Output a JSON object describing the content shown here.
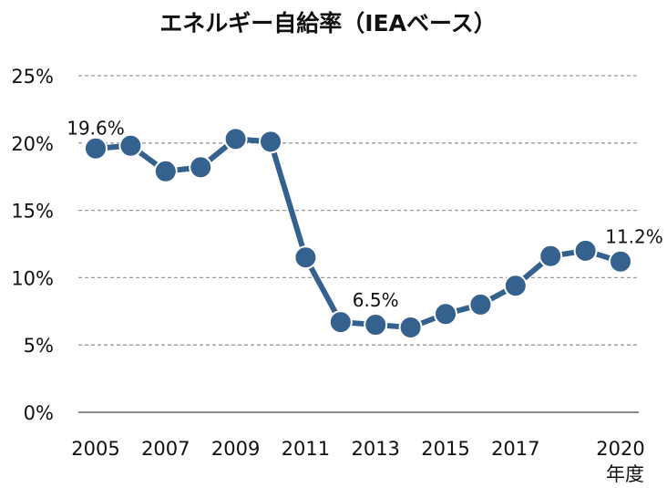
{
  "chart_data": {
    "type": "line",
    "title": "エネルギー自給率（IEAベース）",
    "xlabel": "年度",
    "ylabel": "",
    "x": [
      2005,
      2006,
      2007,
      2008,
      2009,
      2010,
      2011,
      2012,
      2013,
      2014,
      2015,
      2016,
      2017,
      2018,
      2019,
      2020
    ],
    "series": [
      {
        "name": "エネルギー自給率",
        "color": "#35618F",
        "values": [
          19.6,
          19.8,
          17.9,
          18.2,
          20.3,
          20.1,
          11.5,
          6.7,
          6.5,
          6.3,
          7.3,
          8.0,
          9.4,
          11.6,
          12.0,
          11.2
        ]
      }
    ],
    "ylim": [
      0,
      25
    ],
    "yticks": [
      0,
      5,
      10,
      15,
      20,
      25
    ],
    "ytick_labels": [
      "0%",
      "5%",
      "10%",
      "15%",
      "20%",
      "25%"
    ],
    "xtick_labels": [
      {
        "x": 2005,
        "label": "2005"
      },
      {
        "x": 2007,
        "label": "2007"
      },
      {
        "x": 2009,
        "label": "2009"
      },
      {
        "x": 2011,
        "label": "2011"
      },
      {
        "x": 2013,
        "label": "2013"
      },
      {
        "x": 2015,
        "label": "2015"
      },
      {
        "x": 2017,
        "label": "2017"
      },
      {
        "x": 2020,
        "label": "2020"
      }
    ],
    "annotations": [
      {
        "x": 2005,
        "label": "19.6%"
      },
      {
        "x": 2013,
        "label": "6.5%"
      },
      {
        "x": 2020,
        "label": "11.2%"
      }
    ],
    "grid": "horizontal-dashed",
    "legend": "none"
  }
}
